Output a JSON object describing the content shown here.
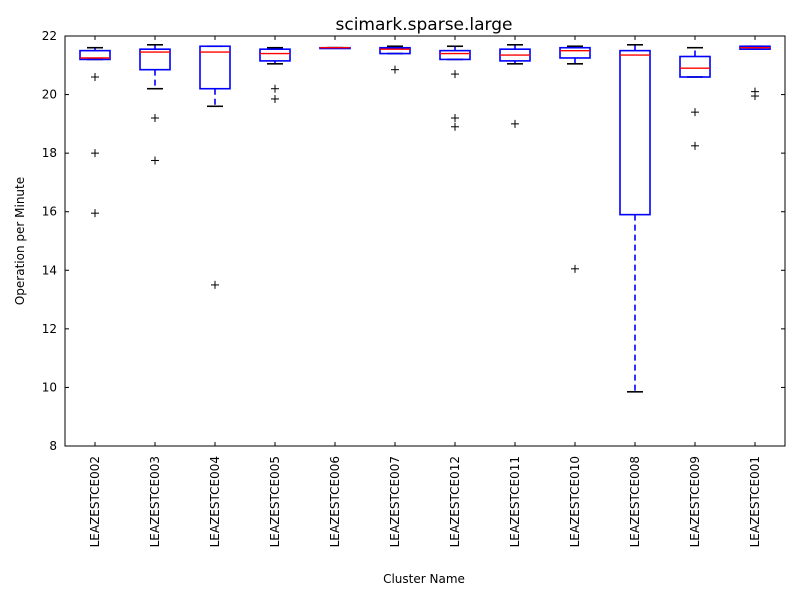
{
  "chart_data": {
    "type": "box",
    "title": "scimark.sparse.large",
    "xlabel": "Cluster Name",
    "ylabel": "Operation per Minute",
    "ylim": [
      8,
      22
    ],
    "yticks": [
      8,
      10,
      12,
      14,
      16,
      18,
      20,
      22
    ],
    "colors": {
      "box": "#0000ff",
      "median": "#ff0000",
      "flier": "#000000",
      "cap": "#000000"
    },
    "categories": [
      "LEAZESTCE002",
      "LEAZESTCE003",
      "LEAZESTCE004",
      "LEAZESTCE005",
      "LEAZESTCE006",
      "LEAZESTCE007",
      "LEAZESTCE012",
      "LEAZESTCE011",
      "LEAZESTCE010",
      "LEAZESTCE008",
      "LEAZESTCE009",
      "LEAZESTCE001"
    ],
    "boxes": [
      {
        "q1": 21.2,
        "median": 21.25,
        "q3": 21.5,
        "whislo": 21.2,
        "whishi": 21.6,
        "fliers": [
          20.6,
          18.0,
          15.95
        ]
      },
      {
        "q1": 20.85,
        "median": 21.45,
        "q3": 21.55,
        "whislo": 20.2,
        "whishi": 21.7,
        "fliers": [
          19.2,
          17.75
        ]
      },
      {
        "q1": 20.2,
        "median": 21.45,
        "q3": 21.65,
        "whislo": 19.6,
        "whishi": 21.65,
        "fliers": [
          13.5
        ]
      },
      {
        "q1": 21.15,
        "median": 21.4,
        "q3": 21.55,
        "whislo": 21.05,
        "whishi": 21.6,
        "fliers": [
          20.2,
          19.85
        ]
      },
      {
        "q1": 21.6,
        "median": 21.6,
        "q3": 21.6,
        "whislo": 21.6,
        "whishi": 21.6,
        "fliers": []
      },
      {
        "q1": 21.4,
        "median": 21.55,
        "q3": 21.6,
        "whislo": 21.4,
        "whishi": 21.65,
        "fliers": [
          20.85
        ]
      },
      {
        "q1": 21.2,
        "median": 21.4,
        "q3": 21.5,
        "whislo": 21.2,
        "whishi": 21.65,
        "fliers": [
          20.7,
          19.2,
          18.9
        ]
      },
      {
        "q1": 21.15,
        "median": 21.35,
        "q3": 21.55,
        "whislo": 21.05,
        "whishi": 21.7,
        "fliers": [
          19.0
        ]
      },
      {
        "q1": 21.25,
        "median": 21.5,
        "q3": 21.6,
        "whislo": 21.05,
        "whishi": 21.65,
        "fliers": [
          14.05
        ]
      },
      {
        "q1": 15.9,
        "median": 21.35,
        "q3": 21.5,
        "whislo": 9.85,
        "whishi": 21.7,
        "fliers": []
      },
      {
        "q1": 20.6,
        "median": 20.9,
        "q3": 21.3,
        "whislo": 20.6,
        "whishi": 21.6,
        "fliers": [
          19.4,
          18.25
        ]
      },
      {
        "q1": 21.55,
        "median": 21.6,
        "q3": 21.65,
        "whislo": 21.55,
        "whishi": 21.65,
        "fliers": [
          20.1,
          19.95
        ]
      }
    ]
  }
}
